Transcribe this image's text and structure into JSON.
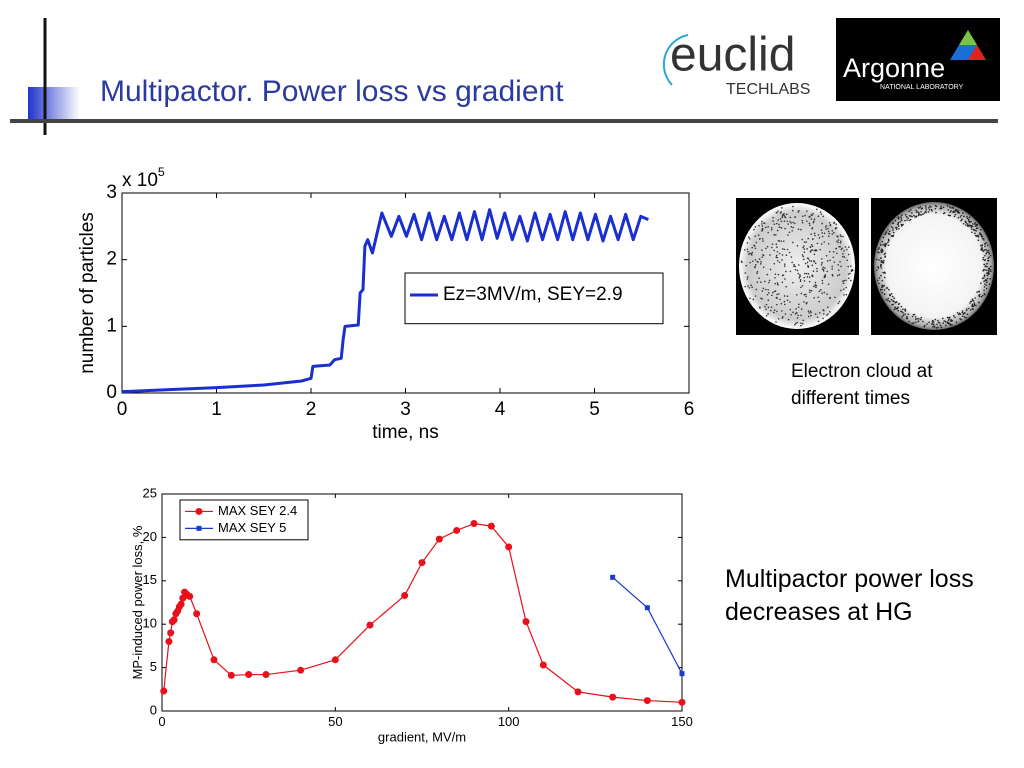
{
  "title": "Multipactor. Power loss vs gradient",
  "logos": {
    "euclid": "euclid",
    "techlabs": "TECHLABS",
    "argonne": "Argonne",
    "argonne_sub": "NATIONAL LABORATORY"
  },
  "captions": [
    "Electron cloud at different times",
    "Multipactor power loss decreases at HG"
  ],
  "chart_data": [
    {
      "type": "line",
      "xlabel": "time, ns",
      "ylabel": "number of particles",
      "y_multiplier": {
        "base": "x 10",
        "exponent": "5"
      },
      "xlim": [
        0,
        6
      ],
      "xticks": [
        0,
        1,
        2,
        3,
        4,
        5,
        6
      ],
      "ylim": [
        0,
        3
      ],
      "yticks": [
        0,
        1,
        2,
        3
      ],
      "legend": "center-right",
      "series": [
        {
          "name": "Ez=3MV/m, SEY=2.9",
          "color": "#1a2fd0",
          "marker": "none",
          "x": [
            0,
            0.5,
            1,
            1.5,
            1.9,
            2.0,
            2.02,
            2.2,
            2.25,
            2.32,
            2.34,
            2.36,
            2.5,
            2.52,
            2.55,
            2.57,
            2.6,
            2.65,
            2.7,
            2.75,
            2.85,
            2.93,
            3.01,
            3.09,
            3.17,
            3.25,
            3.33,
            3.41,
            3.49,
            3.57,
            3.65,
            3.73,
            3.81,
            3.89,
            3.97,
            4.05,
            4.13,
            4.21,
            4.29,
            4.37,
            4.45,
            4.53,
            4.61,
            4.69,
            4.77,
            4.85,
            4.93,
            5.01,
            5.09,
            5.17,
            5.25,
            5.33,
            5.41,
            5.49,
            5.57
          ],
          "values": [
            0.02,
            0.05,
            0.08,
            0.12,
            0.18,
            0.22,
            0.4,
            0.42,
            0.5,
            0.52,
            0.8,
            1.0,
            1.02,
            1.5,
            1.55,
            2.2,
            2.3,
            2.1,
            2.4,
            2.7,
            2.35,
            2.65,
            2.35,
            2.68,
            2.3,
            2.7,
            2.3,
            2.65,
            2.3,
            2.7,
            2.3,
            2.72,
            2.3,
            2.75,
            2.32,
            2.7,
            2.3,
            2.65,
            2.28,
            2.7,
            2.3,
            2.68,
            2.3,
            2.72,
            2.3,
            2.7,
            2.3,
            2.68,
            2.28,
            2.65,
            2.3,
            2.68,
            2.3,
            2.65,
            2.6
          ]
        }
      ]
    },
    {
      "type": "line",
      "xlabel": "gradient, MV/m",
      "ylabel": "MP-induced power loss, %",
      "xlim": [
        0,
        150
      ],
      "xticks": [
        0,
        50,
        100,
        150
      ],
      "ylim": [
        0,
        25
      ],
      "yticks": [
        0,
        5,
        10,
        15,
        20,
        25
      ],
      "legend": "upper-left",
      "series": [
        {
          "name": "MAX SEY 2.4",
          "color": "#e8101a",
          "marker": "circle",
          "x": [
            0.5,
            2,
            2.5,
            3,
            3.5,
            4,
            4.5,
            5,
            5.5,
            6,
            6.5,
            7,
            7.5,
            8,
            10,
            15,
            20,
            25,
            30,
            40,
            50,
            60,
            70,
            75,
            80,
            85,
            90,
            95,
            100,
            105,
            110,
            120,
            130,
            140,
            150
          ],
          "values": [
            2.3,
            8,
            9,
            10.3,
            10.5,
            11.2,
            11.5,
            12,
            12.3,
            13,
            13.7,
            13.5,
            13.3,
            13.2,
            11.2,
            5.9,
            4.1,
            4.2,
            4.2,
            4.7,
            5.9,
            9.9,
            13.3,
            17.1,
            19.8,
            20.8,
            21.6,
            21.3,
            18.9,
            10.3,
            5.3,
            2.2,
            1.6,
            1.2,
            1.0
          ]
        },
        {
          "name": "MAX SEY 5",
          "color": "#1a3ad0",
          "marker": "square",
          "x": [
            130,
            140,
            150
          ],
          "values": [
            15.4,
            11.9,
            4.3
          ]
        }
      ]
    }
  ]
}
